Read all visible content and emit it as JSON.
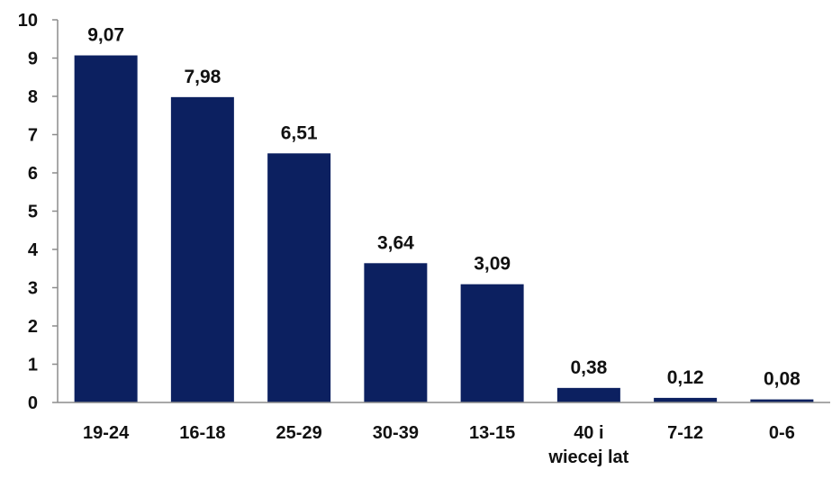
{
  "chart_data": {
    "type": "bar",
    "title": "",
    "xlabel": "",
    "ylabel": "",
    "categories": [
      "19-24",
      "16-18",
      "25-29",
      "30-39",
      "13-15",
      "40 i wiecej lat",
      "7-12",
      "0-6"
    ],
    "category_label_lines": [
      [
        "19-24"
      ],
      [
        "16-18"
      ],
      [
        "25-29"
      ],
      [
        "30-39"
      ],
      [
        "13-15"
      ],
      [
        "40 i",
        "wiecej lat"
      ],
      [
        "7-12"
      ],
      [
        "0-6"
      ]
    ],
    "values": [
      9.07,
      7.98,
      6.51,
      3.64,
      3.09,
      0.38,
      0.12,
      0.08
    ],
    "data_labels": [
      "9,07",
      "7,98",
      "6,51",
      "3,64",
      "3,09",
      "0,38",
      "0,12",
      "0,08"
    ],
    "ylim": [
      0,
      10
    ],
    "yticks": [
      0,
      1,
      2,
      3,
      4,
      5,
      6,
      7,
      8,
      9,
      10
    ],
    "grid": false,
    "legend": "none",
    "bar_color": "#0C2060",
    "axis_color": "#8C8C8C"
  }
}
